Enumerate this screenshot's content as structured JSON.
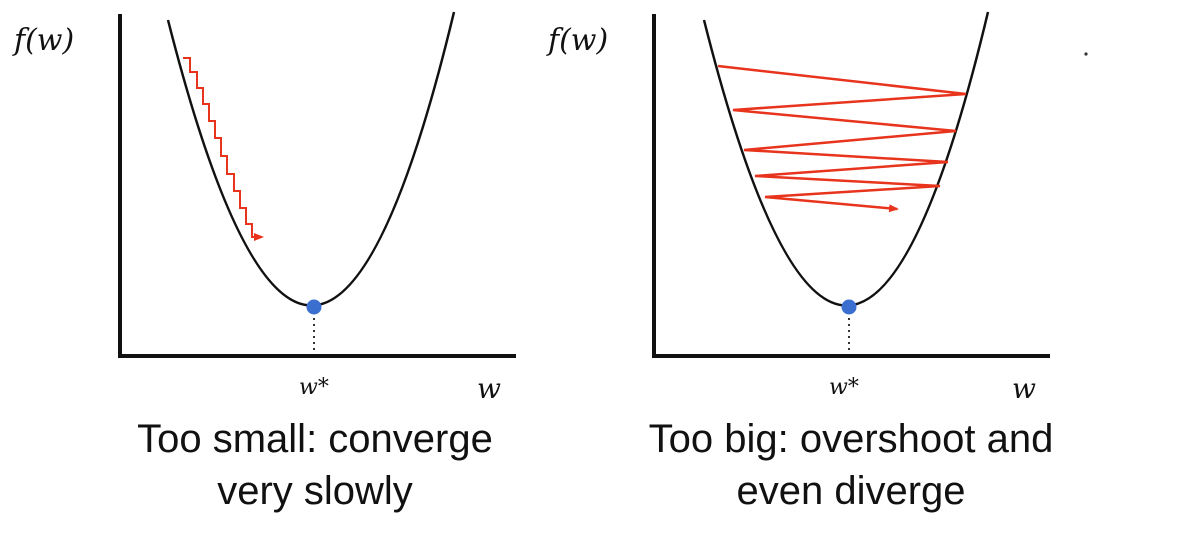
{
  "panels": [
    {
      "y_axis_label": "f(w)",
      "minimum_label": "w*",
      "x_axis_label": "w",
      "caption_line1": "Too small: converge",
      "caption_line2": "very slowly"
    },
    {
      "y_axis_label": "f(w)",
      "minimum_label": "w*",
      "x_axis_label": "w",
      "caption_line1": "Too big: overshoot and",
      "caption_line2": "even diverge"
    }
  ],
  "colors": {
    "axis": "#111111",
    "curve": "#111111",
    "path": "#e8341c",
    "minimum_point": "#3a6fd0"
  }
}
